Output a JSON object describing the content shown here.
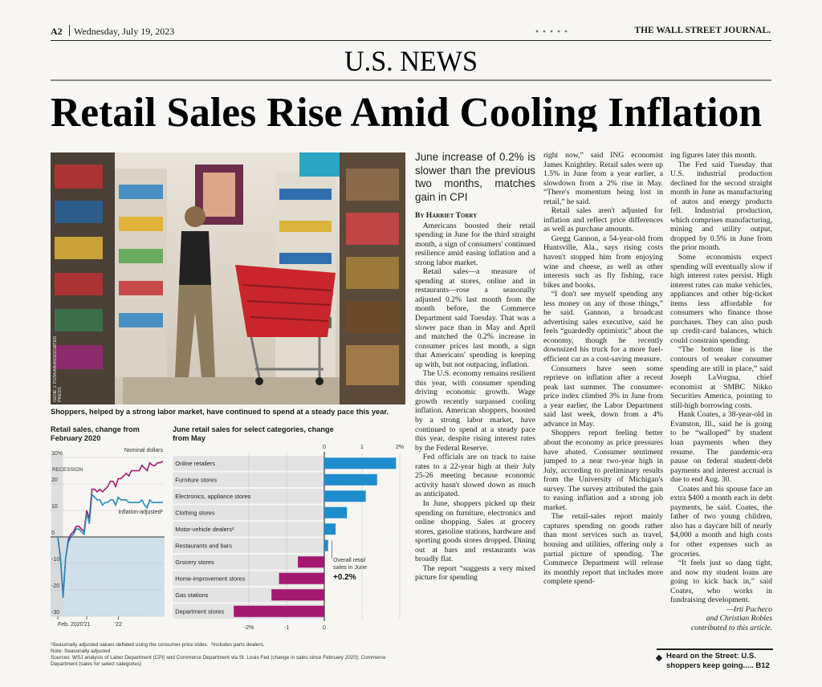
{
  "header": {
    "page": "A2",
    "date": "Wednesday, July 19, 2023",
    "masthead": "THE WALL STREET JOURNAL."
  },
  "section": "U.S. NEWS",
  "headline": "Retail Sales Rise Amid Cooling Inflation",
  "photo": {
    "credit": "GENE J. PUSKAR/ASSOCIATED PRESS",
    "caption": "Shoppers, helped by a strong labor market, have continued to spend at a steady pace this year."
  },
  "chart_data": [
    {
      "type": "line",
      "title": "Retail sales, change from February 2020",
      "x": [
        "2020-02",
        "2020-03",
        "2020-04",
        "2020-05",
        "2020-06",
        "2020-07",
        "2020-08",
        "2020-09",
        "2020-10",
        "2020-11",
        "2020-12",
        "2021-01",
        "2021-02",
        "2021-03",
        "2021-04",
        "2021-05",
        "2021-06",
        "2021-07",
        "2021-08",
        "2021-09",
        "2021-10",
        "2021-11",
        "2021-12",
        "2022-01",
        "2022-02",
        "2022-03",
        "2022-04",
        "2022-05",
        "2022-06",
        "2022-07",
        "2022-08",
        "2022-09",
        "2022-10",
        "2022-11",
        "2022-12",
        "2023-01",
        "2023-02",
        "2023-03",
        "2023-04",
        "2023-05",
        "2023-06"
      ],
      "series": [
        {
          "name": "Nominal dollars",
          "color": "#a3196f",
          "values": [
            0,
            -8,
            -22,
            -8,
            -1,
            1,
            2,
            4,
            4,
            3,
            2,
            10,
            7,
            18,
            18,
            17,
            18,
            17,
            18,
            19,
            21,
            21,
            19,
            22,
            22,
            23,
            24,
            23,
            25,
            25,
            25,
            25,
            27,
            26,
            25,
            28,
            27,
            27,
            28,
            28,
            28.5
          ]
        },
        {
          "name": "Inflation-adjusted¹",
          "color": "#2b8cb7",
          "values": [
            0,
            -8,
            -23,
            -8,
            -2,
            0,
            1,
            3,
            3,
            2,
            1,
            9,
            5,
            16,
            15,
            14,
            14,
            12,
            13,
            13,
            14,
            14,
            12,
            15,
            14,
            14,
            14,
            13,
            13,
            13,
            13,
            13,
            14,
            12,
            11,
            14,
            13,
            13,
            13,
            13,
            13
          ]
        }
      ],
      "ylim": [
        -30,
        30
      ],
      "yticks": [
        {
          "value": 30,
          "label": "30%"
        },
        20,
        10,
        0,
        -10,
        -20,
        -30
      ],
      "xticks": [
        {
          "value": "2020-02",
          "label": "Feb. 2020"
        },
        {
          "value": "2021-01",
          "label": "'21"
        },
        {
          "value": "2022-01",
          "label": "'22"
        }
      ],
      "recession": {
        "label": "RECESSION",
        "start": "2020-02",
        "end": "2020-04"
      },
      "grid": true
    },
    {
      "type": "bar",
      "orientation": "horizontal",
      "title": "June retail sales for select categories, change from May",
      "categories": [
        "Online retailers",
        "Furniture stores",
        "Electronics, appliance stores",
        "Clothing stores",
        "Motor-vehicle dealers²",
        "Restaurants and bars",
        "Grocery stores",
        "Home-improvement stores",
        "Gas stations",
        "Department stores"
      ],
      "values": [
        1.9,
        1.4,
        1.1,
        0.6,
        0.3,
        0.1,
        -0.7,
        -1.2,
        -1.4,
        -2.4
      ],
      "colors": {
        "positive": "#1f8dcb",
        "negative": "#a3196f"
      },
      "xlim": [
        -4.1,
        2.1
      ],
      "xticks_top": [
        0,
        1,
        {
          "value": 2,
          "label": "2%"
        }
      ],
      "xticks_bottom": [
        {
          "value": -2,
          "label": "-2%"
        },
        -1,
        0
      ],
      "annotation": {
        "text": "Overall retail sales in June",
        "value": 0.2,
        "value_label": "+0.2%"
      },
      "grid": true
    }
  ],
  "chart_notes": [
    "¹Seasonally adjusted values deflated using the consumer-price index.",
    "²Includes parts dealers.",
    "Note: Seasonally adjusted",
    "Sources: WSJ analysis of Labor Department (CPI) and Commerce Department via St. Louis Fed (change in sales since February 2020); Commerce Department (sales for select categories)"
  ],
  "article": {
    "subhead": "June increase of 0.2% is slower than the previous two months, matches gain in CPI",
    "byline": "By Harriet Torry",
    "columns": [
      [
        "Americans boosted their retail spending in June for the third straight month, a sign of consumers' continued resilience amid easing inflation and a strong labor market.",
        "Retail sales—a measure of spending at stores, online and in restaurants—rose a seasonally adjusted 0.2% last month from the month before, the Commerce Department said Tuesday. That was a slower pace than in May and April and matched the 0.2% increase in consumer prices last month, a sign that Americans' spending is keeping up with, but not outpacing, inflation.",
        "The U.S. economy remains resilient this year, with consumer spending driving economic growth. Wage growth recently surpassed cooling inflation. American shoppers, boosted by a strong labor market, have continued to spend at a steady pace this year, despite rising interest rates by the Federal Reserve.",
        "Fed officials are on track to raise rates to a 22-year high at their July 25-26 meeting because economic activity hasn't slowed down as much as anticipated.",
        "In June, shoppers picked up their spending on furniture, electronics and online shopping. Sales at grocery stores, gasoline stations, hardware and sporting goods stores dropped. Dining out at bars and restaurants was broadly flat.",
        "The report “suggests a very mixed picture for spending"
      ],
      [
        "right now,” said ING economist James Knightley. Retail sales were up 1.5% in June from a year earlier, a slowdown from a 2% rise in May. “There's momentum being lost in retail,” he said.",
        "Retail sales aren't adjusted for inflation and reflect price differences as well as purchase amounts.",
        "Gregg Gannon, a 54-year-old from Huntsville, Ala., says rising costs haven't stopped him from enjoying wine and cheese, as well as other interests such as fly fishing, race bikes and books.",
        "“I don't see myself spending any less money on any of those things,” he said. Gannon, a broadcast advertising sales executive, said he feels “guardedly optimistic” about the economy, though he recently downsized his truck for a more fuel-efficient car as a cost-saving measure.",
        "Consumers have seen some reprieve on inflation after a recent peak last summer. The consumer-price index climbed 3% in June from a year earlier, the Labor Department said last week, down from a 4% advance in May.",
        "Shoppers report feeling better about the economy as price pressures have abated. Consumer sentiment jumped to a near two-year high in July, according to preliminary results from the University of Michigan's survey. The survey attributed the gain to easing inflation and a strong job market.",
        "The retail-sales report mainly captures spending on goods rather than most services such as travel, housing and utilities, offering only a partial picture of spending. The Commerce Department will release its monthly report that includes more complete spend-"
      ],
      [
        "ing figures later this month.",
        "The Fed said Tuesday that U.S. industrial production declined for the second straight month in June as manufacturing of autos and energy products fell. Industrial production, which comprises manufacturing, mining and utility output, dropped by 0.5% in June from the prior month.",
        "Some economists expect spending will eventually slow if high interest rates persist. High interest rates can make vehicles, appliances and other big-ticket items less affordable for consumers who finance those purchases. They can also push up credit-card balances, which could constrain spending.",
        "“The bottom line is the contours of weaker consumer spending are still in place,” said Joseph LaVorgna, chief economist at SMBC Nikko Securities America, pointing to still-high borrowing costs.",
        "Hank Coates, a 38-year-old in Evanston, Ill., said he is going to be “walloped” by student loan payments when they resume. The pandemic-era pause on federal student-debt payments and interest accrual is due to end Aug. 30.",
        "Coates and his spouse face an extra $400 a month each in debt payments, he said. Coates, the father of two young children, also has a daycare bill of nearly $4,000 a month and high costs for other expenses such as groceries.",
        "“It feels just so dang tight, and now my student loans are going to kick back in,” said Coates, who works in fundraising development."
      ]
    ],
    "credit": [
      "—Irti Pacheco",
      "and Christian Robles",
      "contributed to this article."
    ],
    "teaser": {
      "text": "Heard on the Street: U.S. shoppers keep going.....",
      "page": "B12"
    }
  }
}
